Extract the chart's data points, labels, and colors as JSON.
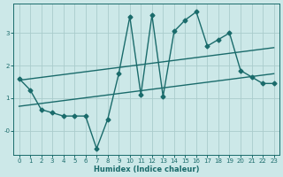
{
  "xlabel": "Humidex (Indice chaleur)",
  "bg_color": "#cce8e8",
  "line_color": "#1a6b6b",
  "grid_color": "#aacccc",
  "xlim": [
    -0.5,
    23.5
  ],
  "ylim": [
    -0.75,
    3.9
  ],
  "yticks": [
    0,
    1,
    2,
    3
  ],
  "ytick_labels": [
    "-0",
    "1",
    "2",
    "3"
  ],
  "xticks": [
    0,
    1,
    2,
    3,
    4,
    5,
    6,
    7,
    8,
    9,
    10,
    11,
    12,
    13,
    14,
    15,
    16,
    17,
    18,
    19,
    20,
    21,
    22,
    23
  ],
  "line1_x": [
    0,
    1,
    2,
    3,
    4,
    5,
    6,
    7,
    8,
    9,
    10,
    11,
    12,
    13,
    14,
    15,
    16,
    17,
    18,
    19,
    20,
    21,
    22,
    23
  ],
  "line1_y": [
    1.6,
    1.25,
    0.65,
    0.55,
    0.45,
    0.45,
    0.45,
    -0.55,
    0.35,
    1.75,
    3.5,
    1.1,
    3.55,
    1.05,
    3.05,
    3.4,
    3.65,
    2.6,
    2.8,
    3.0,
    1.85,
    1.65,
    1.45,
    1.45
  ],
  "line2_x": [
    0,
    23
  ],
  "line2_y": [
    1.55,
    2.55
  ],
  "line3_x": [
    0,
    23
  ],
  "line3_y": [
    0.75,
    1.75
  ],
  "marker": "D",
  "marker_size": 2.5,
  "line_width": 1.0
}
